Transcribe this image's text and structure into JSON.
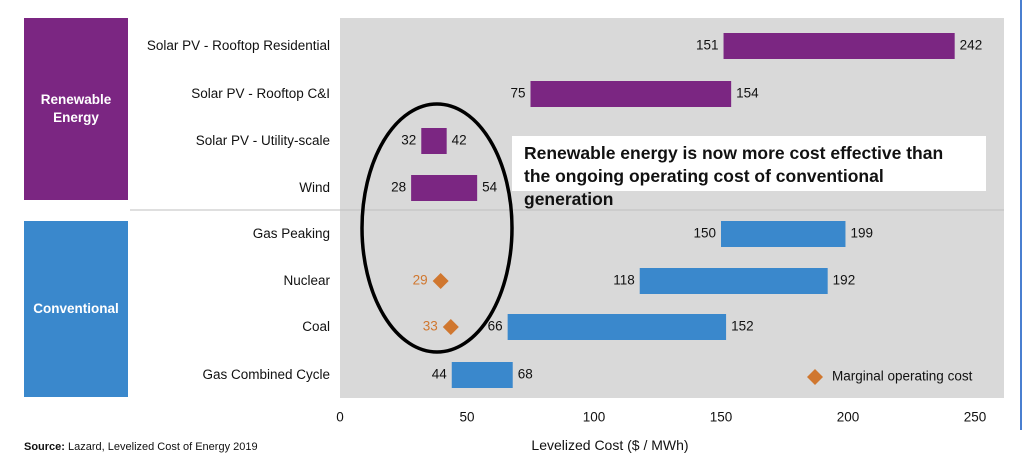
{
  "chart_data": {
    "type": "bar",
    "subtype": "floating-range",
    "xlabel": "Levelized Cost ($ / MWh)",
    "xlim": [
      0,
      250
    ],
    "xticks": [
      0,
      50,
      100,
      150,
      200,
      250
    ],
    "groups": [
      {
        "label": "Renewable Energy",
        "color": "#7b2682"
      },
      {
        "label": "Conventional",
        "color": "#3a88cc"
      }
    ],
    "categories": [
      {
        "label": "Solar PV - Rooftop Residential",
        "group": 0,
        "low": 151,
        "high": 242
      },
      {
        "label": "Solar PV - Rooftop C&I",
        "group": 0,
        "low": 75,
        "high": 154
      },
      {
        "label": "Solar PV - Utility-scale",
        "group": 0,
        "low": 32,
        "high": 42
      },
      {
        "label": "Wind",
        "group": 0,
        "low": 28,
        "high": 54
      },
      {
        "label": "Gas Peaking",
        "group": 1,
        "low": 150,
        "high": 199
      },
      {
        "label": "Nuclear",
        "group": 1,
        "low": 118,
        "high": 192,
        "marginal": 29
      },
      {
        "label": "Coal",
        "group": 1,
        "low": 66,
        "high": 152,
        "marginal": 33
      },
      {
        "label": "Gas Combined Cycle",
        "group": 1,
        "low": 44,
        "high": 68
      }
    ],
    "marker_series": {
      "name": "Marginal operating cost",
      "color": "#d0772f"
    },
    "annotation": "Renewable energy is now more cost effective than the ongoing operating cost of conventional generation",
    "source": "Lazard, Levelized Cost of Energy 2019",
    "colors": {
      "plot_bg": "#d9d9d9",
      "marker": "#d0772f",
      "renewable": "#7b2682",
      "conventional": "#3a88cc"
    }
  },
  "ui": {
    "source_prefix": "Source:",
    "group_renewable": "Renewable Energy",
    "group_conventional": "Conventional"
  }
}
